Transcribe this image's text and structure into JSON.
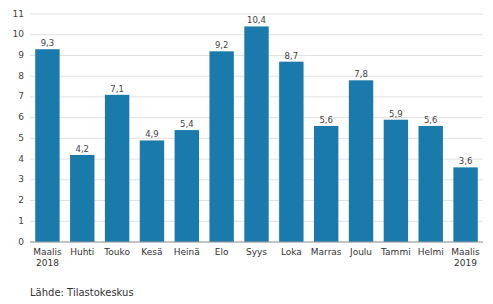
{
  "chart_data": {
    "type": "bar",
    "categories": [
      "Maalis\n2018",
      "Huhti",
      "Touko",
      "Kesä",
      "Heinä",
      "Elo",
      "Syys",
      "Loka",
      "Marras",
      "Joulu",
      "Tammi",
      "Helmi",
      "Maalis\n2019"
    ],
    "values": [
      9.3,
      4.2,
      7.1,
      4.9,
      5.4,
      9.2,
      10.4,
      8.7,
      5.6,
      7.8,
      5.9,
      5.6,
      3.6
    ],
    "value_labels": [
      "9,3",
      "4,2",
      "7,1",
      "4,9",
      "5,4",
      "9,2",
      "10,4",
      "8,7",
      "5,6",
      "7,8",
      "5,9",
      "5,6",
      "3,6"
    ],
    "color": "#1a7aab",
    "ylim": [
      0,
      11
    ],
    "yticks": [
      0,
      1,
      2,
      3,
      4,
      5,
      6,
      7,
      8,
      9,
      10,
      11
    ],
    "grid": true,
    "data_labels": true,
    "annotations": [
      "Lähde: Tilastokeskus"
    ]
  }
}
